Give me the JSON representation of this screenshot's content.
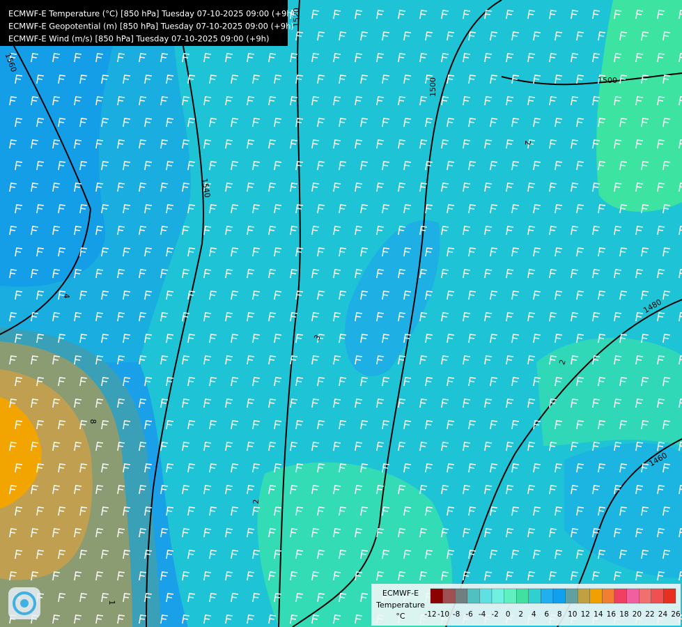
{
  "header": {
    "lines": [
      "ECMWF-E Temperature (°C) [850 hPa] Tuesday 07-10-2025 09:00 (+9h)",
      "ECMWF-E Geopotential (m) [850 hPa] Tuesday 07-10-2025 09:00 (+9h)",
      "ECMWF-E Wind (m/s) [850 hPa] Tuesday 07-10-2025 09:00 (+9h)"
    ]
  },
  "map": {
    "contour_labels": [
      "1520",
      "1560",
      "1540",
      "1500",
      "1500",
      "2",
      "4",
      "3",
      "2",
      "1480",
      "8",
      "1460",
      "2",
      "1"
    ]
  },
  "legend": {
    "title": [
      "ECMWF-E",
      "Temperature",
      "°C"
    ],
    "ticks": [
      -12,
      -10,
      -8,
      -6,
      -4,
      -2,
      0,
      2,
      4,
      6,
      8,
      10,
      12,
      14,
      16,
      18,
      20,
      22,
      24,
      26
    ],
    "colors": [
      "#8b0000",
      "#a05050",
      "#708080",
      "#50c0c0",
      "#60e0e0",
      "#70f0e0",
      "#60f0c0",
      "#40e0a0",
      "#30d0d0",
      "#20b0f0",
      "#10a0f0",
      "#60a0a0",
      "#c0a040",
      "#f0a000",
      "#f08030",
      "#f04060",
      "#f060a0",
      "#f07070",
      "#f05050",
      "#e83020"
    ]
  }
}
